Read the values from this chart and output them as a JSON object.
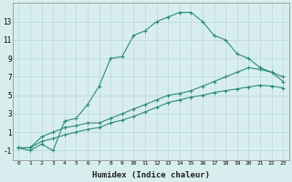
{
  "line1_x": [
    0,
    1,
    2,
    3,
    4,
    5,
    6,
    7,
    8,
    9,
    10,
    11,
    12,
    13,
    14,
    15,
    16,
    17,
    18,
    19,
    20,
    21,
    22,
    23
  ],
  "line1_y": [
    -0.7,
    -1.0,
    -0.3,
    -1.0,
    2.2,
    2.5,
    4.0,
    6.0,
    9.0,
    9.2,
    11.5,
    12.0,
    13.0,
    13.5,
    14.0,
    14.0,
    13.0,
    11.5,
    11.0,
    9.5,
    9.0,
    8.0,
    7.5,
    7.0
  ],
  "line2_x": [
    0,
    1,
    2,
    3,
    4,
    5,
    6,
    7,
    8,
    9,
    10,
    11,
    12,
    13,
    14,
    15,
    16,
    17,
    18,
    19,
    20,
    21,
    22,
    23
  ],
  "line2_y": [
    -0.7,
    -0.7,
    0.5,
    1.0,
    1.5,
    1.7,
    2.0,
    2.0,
    2.5,
    3.0,
    3.5,
    4.0,
    4.5,
    5.0,
    5.2,
    5.5,
    6.0,
    6.5,
    7.0,
    7.5,
    8.0,
    7.8,
    7.5,
    6.5
  ],
  "line3_x": [
    0,
    1,
    2,
    3,
    4,
    5,
    6,
    7,
    8,
    9,
    10,
    11,
    12,
    13,
    14,
    15,
    16,
    17,
    18,
    19,
    20,
    21,
    22,
    23
  ],
  "line3_y": [
    -0.7,
    -0.7,
    0.0,
    0.3,
    0.7,
    1.0,
    1.3,
    1.5,
    2.0,
    2.3,
    2.7,
    3.2,
    3.7,
    4.2,
    4.5,
    4.8,
    5.0,
    5.3,
    5.5,
    5.7,
    5.9,
    6.1,
    6.0,
    5.8
  ],
  "line_color": "#2e8b7a",
  "bg_color": "#d8eeee",
  "grid_color": "#b8d8d8",
  "xlabel": "Humidex (Indice chaleur)",
  "xlim": [
    -0.5,
    23.5
  ],
  "ylim": [
    -2.0,
    15.0
  ],
  "yticks": [
    -1,
    1,
    3,
    5,
    7,
    9,
    11,
    13
  ],
  "xticks": [
    0,
    1,
    2,
    3,
    4,
    5,
    6,
    7,
    8,
    9,
    10,
    11,
    12,
    13,
    14,
    15,
    16,
    17,
    18,
    19,
    20,
    21,
    22,
    23
  ],
  "marker": "+"
}
